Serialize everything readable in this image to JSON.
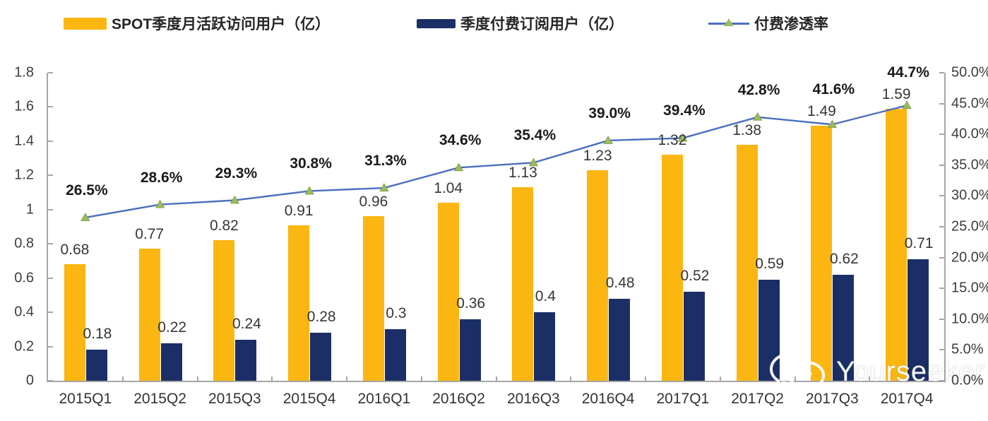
{
  "colors": {
    "bar_mau": "#FBB612",
    "bar_subscribers": "#1B2F66",
    "line_penetration": "#4B6FBE",
    "line_marker": "#9CBB5E",
    "axis": "#A6A6A6"
  },
  "legend": {
    "items": [
      {
        "label": "SPOT季度月活跃访问用户（亿）"
      },
      {
        "label": "季度付费订阅用户（亿）"
      },
      {
        "label": "付费渗透率"
      }
    ]
  },
  "watermark": {
    "text": "Yourseeker",
    "icon": "wechat-icon"
  },
  "chart_data": {
    "type": "bar",
    "subtype": "grouped bars with overlay line (dual axis)",
    "title": "",
    "xlabel": "",
    "ylabel": "",
    "grid": "off",
    "legend_position": "top",
    "categories": [
      "2015Q1",
      "2015Q2",
      "2015Q3",
      "2015Q4",
      "2016Q1",
      "2016Q2",
      "2016Q3",
      "2016Q4",
      "2017Q1",
      "2017Q2",
      "2017Q3",
      "2017Q4"
    ],
    "series": [
      {
        "name": "SPOT季度月活跃访问用户（亿）",
        "type": "bar",
        "axis": "left",
        "color": "#FBB612",
        "values": [
          0.68,
          0.77,
          0.82,
          0.91,
          0.96,
          1.04,
          1.13,
          1.23,
          1.32,
          1.38,
          1.49,
          1.59
        ],
        "labels": [
          "0.68",
          "0.77",
          "0.82",
          "0.91",
          "0.96",
          "1.04",
          "1.13",
          "1.23",
          "1.32",
          "1.38",
          "1.49",
          "1.59"
        ]
      },
      {
        "name": "季度付费订阅用户（亿）",
        "type": "bar",
        "axis": "left",
        "color": "#1B2F66",
        "values": [
          0.18,
          0.22,
          0.24,
          0.28,
          0.3,
          0.36,
          0.4,
          0.48,
          0.52,
          0.59,
          0.62,
          0.71
        ],
        "labels": [
          "0.18",
          "0.22",
          "0.24",
          "0.28",
          "0.3",
          "0.36",
          "0.4",
          "0.48",
          "0.52",
          "0.59",
          "0.62",
          "0.71"
        ]
      },
      {
        "name": "付费渗透率",
        "type": "line",
        "axis": "right",
        "color": "#4B6FBE",
        "marker": "triangle",
        "marker_color": "#9CBB5E",
        "values": [
          26.5,
          28.6,
          29.3,
          30.8,
          31.3,
          34.6,
          35.4,
          39.0,
          39.4,
          42.8,
          41.6,
          44.7
        ],
        "labels": [
          "26.5%",
          "28.6%",
          "29.3%",
          "30.8%",
          "31.3%",
          "34.6%",
          "35.4%",
          "39.0%",
          "39.4%",
          "42.8%",
          "41.6%",
          "44.7%"
        ]
      }
    ],
    "left_axis": {
      "min": 0,
      "max": 1.8,
      "tick_labels": [
        "0",
        "0.2",
        "0.4",
        "0.6",
        "0.8",
        "1",
        "1.2",
        "1.4",
        "1.6",
        "1.8"
      ]
    },
    "right_axis": {
      "min": 0,
      "max": 50,
      "tick_labels": [
        "0.0%",
        "5.0%",
        "10.0%",
        "15.0%",
        "20.0%",
        "25.0%",
        "30.0%",
        "35.0%",
        "40.0%",
        "45.0%",
        "50.0%"
      ]
    }
  }
}
